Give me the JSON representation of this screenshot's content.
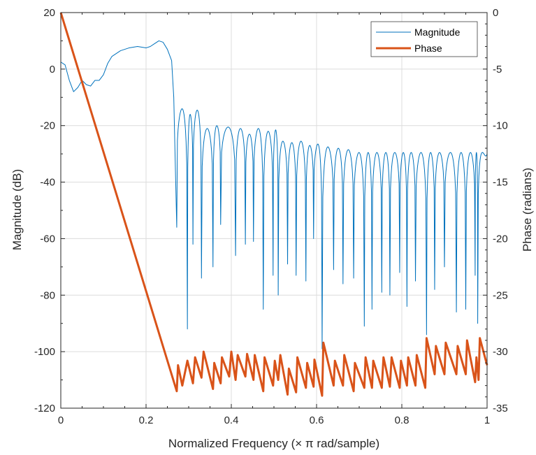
{
  "chart_data": {
    "type": "line",
    "xlabel": "Normalized Frequency (× π rad/sample)",
    "ylabel_left": "Magnitude (dB)",
    "ylabel_right": "Phase (radians)",
    "xlim": [
      0,
      1
    ],
    "ylim_left": [
      -120,
      20
    ],
    "ylim_right": [
      -35,
      0
    ],
    "x_ticks": [
      "0",
      "0.2",
      "0.4",
      "0.6",
      "0.8",
      "1"
    ],
    "y_ticks_left": [
      "20",
      "0",
      "-20",
      "-40",
      "-60",
      "-80",
      "-100",
      "-120"
    ],
    "y_ticks_right": [
      "0",
      "-5",
      "-10",
      "-15",
      "-20",
      "-25",
      "-30",
      "-35"
    ],
    "grid": true,
    "legend_position": "top-right",
    "series": [
      {
        "name": "Magnitude",
        "axis": "left",
        "color": "#0072BD",
        "line_width": "thin",
        "passband": [
          [
            0.0,
            2.5
          ],
          [
            0.01,
            1.5
          ],
          [
            0.02,
            -4
          ],
          [
            0.03,
            -8
          ],
          [
            0.04,
            -6.5
          ],
          [
            0.05,
            -4
          ],
          [
            0.06,
            -5.5
          ],
          [
            0.07,
            -6
          ],
          [
            0.08,
            -4
          ],
          [
            0.09,
            -4
          ],
          [
            0.1,
            -2
          ],
          [
            0.11,
            2
          ],
          [
            0.12,
            4.5
          ],
          [
            0.14,
            6.5
          ],
          [
            0.16,
            7.5
          ],
          [
            0.18,
            8
          ],
          [
            0.2,
            7.5
          ],
          [
            0.21,
            8
          ],
          [
            0.22,
            9
          ],
          [
            0.23,
            10
          ],
          [
            0.24,
            9.5
          ],
          [
            0.25,
            7
          ],
          [
            0.26,
            3
          ],
          [
            0.265,
            -10
          ],
          [
            0.268,
            -30
          ],
          [
            0.272,
            -56
          ]
        ],
        "stopband_peaks": [
          -14,
          -16,
          -14.5,
          -21,
          -20,
          -20.5,
          -21,
          -23,
          -21,
          -22,
          -21.5,
          -25.5,
          -26,
          -25.5,
          -27,
          -26.5,
          -27.5,
          -28,
          -28.5,
          -29.5
        ],
        "stopband_nulls": [
          [
            0.272,
            -56
          ],
          [
            0.297,
            -92
          ],
          [
            0.31,
            -62
          ],
          [
            0.33,
            -74
          ],
          [
            0.357,
            -70
          ],
          [
            0.375,
            -55
          ],
          [
            0.41,
            -66
          ],
          [
            0.433,
            -62
          ],
          [
            0.452,
            -61
          ],
          [
            0.475,
            -85
          ],
          [
            0.498,
            -73
          ],
          [
            0.51,
            -80
          ],
          [
            0.532,
            -69
          ],
          [
            0.552,
            -73
          ],
          [
            0.575,
            -75
          ],
          [
            0.593,
            -60
          ],
          [
            0.613,
            -99
          ],
          [
            0.64,
            -71
          ],
          [
            0.662,
            -76
          ],
          [
            0.687,
            -74
          ],
          [
            0.712,
            -91
          ],
          [
            0.73,
            -85
          ],
          [
            0.753,
            -79
          ],
          [
            0.772,
            -80
          ],
          [
            0.795,
            -72
          ],
          [
            0.812,
            -84
          ],
          [
            0.832,
            -75
          ],
          [
            0.858,
            -94
          ],
          [
            0.877,
            -78
          ],
          [
            0.9,
            -70
          ],
          [
            0.928,
            -86
          ],
          [
            0.95,
            -85
          ],
          [
            0.972,
            -73
          ],
          [
            0.978,
            -90
          ],
          [
            1.0,
            -30
          ]
        ]
      },
      {
        "name": "Phase",
        "axis": "right",
        "color": "#D95319",
        "line_width": "thick",
        "points": [
          [
            0.0,
            0
          ],
          [
            0.272,
            -33.5
          ],
          [
            0.275,
            -31.2
          ],
          [
            0.285,
            -33
          ],
          [
            0.297,
            -30.8
          ],
          [
            0.31,
            -32.8
          ],
          [
            0.315,
            -30.5
          ],
          [
            0.33,
            -32.3
          ],
          [
            0.335,
            -30
          ],
          [
            0.357,
            -33.3
          ],
          [
            0.36,
            -31
          ],
          [
            0.375,
            -32.8
          ],
          [
            0.378,
            -30.5
          ],
          [
            0.395,
            -32.2
          ],
          [
            0.4,
            -30
          ],
          [
            0.41,
            -32.5
          ],
          [
            0.415,
            -30.3
          ],
          [
            0.433,
            -32.2
          ],
          [
            0.437,
            -30.2
          ],
          [
            0.452,
            -32.5
          ],
          [
            0.455,
            -30.3
          ],
          [
            0.475,
            -33.5
          ],
          [
            0.478,
            -30.5
          ],
          [
            0.498,
            -33
          ],
          [
            0.502,
            -30.8
          ],
          [
            0.51,
            -32.5
          ],
          [
            0.515,
            -30.3
          ],
          [
            0.532,
            -33.8
          ],
          [
            0.535,
            -31.5
          ],
          [
            0.552,
            -33.6
          ],
          [
            0.555,
            -30.5
          ],
          [
            0.575,
            -33.2
          ],
          [
            0.578,
            -31
          ],
          [
            0.593,
            -33.1
          ],
          [
            0.595,
            -30.7
          ],
          [
            0.613,
            -33.9
          ],
          [
            0.616,
            -29.2
          ],
          [
            0.64,
            -33
          ],
          [
            0.643,
            -30.8
          ],
          [
            0.662,
            -33
          ],
          [
            0.665,
            -30.3
          ],
          [
            0.687,
            -33.5
          ],
          [
            0.69,
            -31
          ],
          [
            0.712,
            -33.2
          ],
          [
            0.715,
            -30.5
          ],
          [
            0.73,
            -33.2
          ],
          [
            0.733,
            -30.8
          ],
          [
            0.753,
            -33.2
          ],
          [
            0.757,
            -30.5
          ],
          [
            0.772,
            -33.1
          ],
          [
            0.776,
            -30.5
          ],
          [
            0.795,
            -33.2
          ],
          [
            0.798,
            -30.8
          ],
          [
            0.812,
            -33
          ],
          [
            0.815,
            -30.5
          ],
          [
            0.832,
            -33
          ],
          [
            0.835,
            -30.3
          ],
          [
            0.855,
            -33.2
          ],
          [
            0.858,
            -28.8
          ],
          [
            0.877,
            -32
          ],
          [
            0.88,
            -29.5
          ],
          [
            0.9,
            -32
          ],
          [
            0.903,
            -29.2
          ],
          [
            0.928,
            -32
          ],
          [
            0.931,
            -29.5
          ],
          [
            0.95,
            -32
          ],
          [
            0.953,
            -29
          ],
          [
            0.972,
            -32.7
          ],
          [
            0.975,
            -30.5
          ],
          [
            0.98,
            -32.5
          ],
          [
            0.983,
            -28.8
          ],
          [
            1.0,
            -31.2
          ]
        ]
      }
    ]
  }
}
